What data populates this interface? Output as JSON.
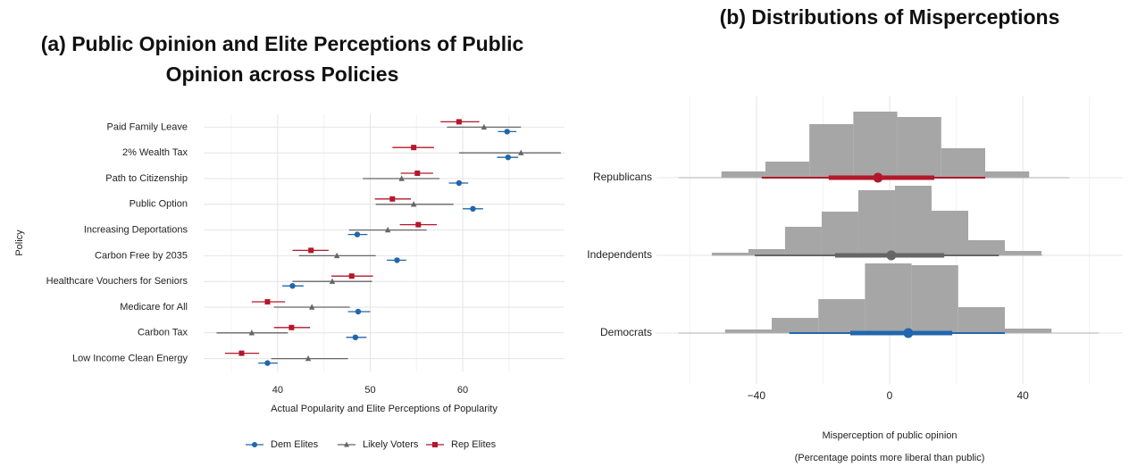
{
  "chart_data": [
    {
      "type": "dot-interval",
      "title": "(a) Public Opinion and Elite Perceptions of Public Opinion across Policies",
      "xlabel": "Actual Popularity and Elite Perceptions of Popularity",
      "ylabel": "Policy",
      "categories": [
        "Paid Family Leave",
        "2% Wealth Tax",
        "Path to Citizenship",
        "Public Option",
        "Increasing Deportations",
        "Carbon Free by 2035",
        "Healthcare Vouchers for Seniors",
        "Medicare for All",
        "Carbon Tax",
        "Low Income Clean Energy"
      ],
      "xlim": [
        32,
        71
      ],
      "xticks": [
        40,
        50,
        60
      ],
      "xminorticks": [
        35,
        45,
        55,
        65
      ],
      "grid": true,
      "legend": "bottom",
      "series": [
        {
          "name": "Dem Elites",
          "color": "#2166ac",
          "marker": "circle",
          "values": [
            64.8,
            64.9,
            59.6,
            61.1,
            48.6,
            52.9,
            41.6,
            48.7,
            48.4,
            38.9
          ],
          "lower": [
            63.8,
            63.7,
            58.5,
            60.0,
            47.6,
            51.8,
            40.5,
            47.6,
            47.4,
            37.9
          ],
          "upper": [
            65.8,
            66.0,
            60.6,
            62.2,
            49.7,
            53.9,
            42.8,
            50.0,
            49.6,
            40.0
          ]
        },
        {
          "name": "Likely Voters",
          "color": "#666666",
          "marker": "triangle",
          "values": [
            62.3,
            66.3,
            53.4,
            54.7,
            51.9,
            46.4,
            45.9,
            43.7,
            37.2,
            43.3
          ],
          "lower": [
            58.3,
            59.6,
            49.2,
            50.6,
            47.7,
            42.3,
            41.6,
            39.6,
            33.4,
            39.3
          ],
          "upper": [
            66.3,
            70.6,
            57.5,
            59.0,
            56.1,
            50.6,
            50.2,
            47.8,
            41.1,
            47.6
          ]
        },
        {
          "name": "Rep Elites",
          "color": "#b2182b",
          "marker": "square",
          "values": [
            59.6,
            54.7,
            55.1,
            52.4,
            55.2,
            43.6,
            48.0,
            38.9,
            41.5,
            36.1
          ],
          "lower": [
            57.6,
            52.4,
            53.3,
            50.5,
            53.2,
            41.6,
            45.8,
            37.2,
            39.6,
            34.3
          ],
          "upper": [
            61.8,
            56.9,
            56.8,
            54.4,
            57.2,
            45.5,
            50.3,
            40.8,
            43.5,
            38.0
          ]
        }
      ]
    },
    {
      "type": "ridge-histogram",
      "title": "(b) Distributions of Misperceptions",
      "xlabel": "Misperception of public opinion",
      "xsublabel": "(Percentage points more liberal than public)",
      "xlim": [
        -70,
        70
      ],
      "xticks": [
        {
          "value": -40,
          "label": "−40"
        },
        0,
        40
      ],
      "xminorticks": [
        -60,
        -20,
        20,
        60
      ],
      "grid": true,
      "histogram_color": "#a6a6a6",
      "range_color": "#b0b0b0",
      "series": [
        {
          "name": "Republicans",
          "color": "#b2182b",
          "bins": [
            -50.5,
            -37.3,
            -24.1,
            -10.9,
            2.3,
            15.5,
            28.7,
            41.9
          ],
          "counts": [
            7,
            18,
            60,
            74,
            68,
            33,
            7
          ],
          "median": -3.5,
          "inner": [
            -18.3,
            13.4
          ],
          "outer": [
            -38.4,
            28.7
          ],
          "range": [
            -63.4,
            54.0
          ]
        },
        {
          "name": "Independents",
          "color": "#666666",
          "bins": [
            -53.4,
            -42.4,
            -31.4,
            -20.4,
            -9.4,
            1.6,
            12.6,
            23.6,
            34.6,
            45.6
          ],
          "counts": [
            3,
            7,
            32,
            49,
            73,
            78,
            50,
            17,
            5
          ],
          "median": 0.5,
          "inner": [
            -16.4,
            16.4
          ],
          "outer": [
            -40.5,
            32.8
          ],
          "range": [
            -53.4,
            45.9
          ]
        },
        {
          "name": "Democrats",
          "color": "#2166ac",
          "bins": [
            -49.4,
            -35.4,
            -21.4,
            -7.4,
            6.6,
            20.6,
            34.6,
            48.6
          ],
          "counts": [
            4,
            17,
            38,
            78,
            76,
            29,
            5
          ],
          "median": 5.6,
          "inner": [
            -11.8,
            18.8
          ],
          "outer": [
            -30.1,
            34.6
          ],
          "range": [
            -63.4,
            62.8
          ]
        }
      ]
    }
  ]
}
